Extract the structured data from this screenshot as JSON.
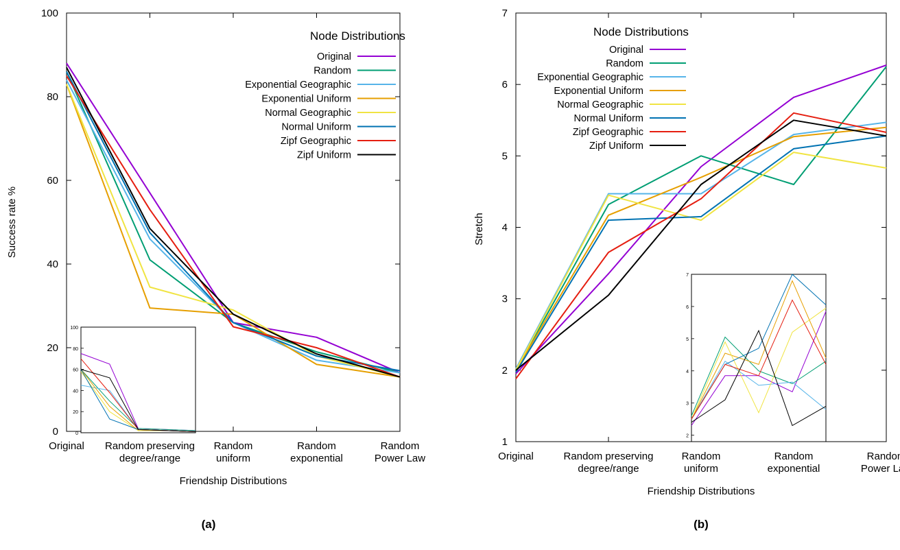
{
  "chart_data": [
    {
      "panel_label": "(a)",
      "type": "line",
      "xlabel": "Friendship Distributions",
      "ylabel": "Success rate %",
      "categories": [
        [
          "Original"
        ],
        [
          "Random preserving",
          "degree/range"
        ],
        [
          "Random",
          "uniform"
        ],
        [
          "Random",
          "exponential"
        ],
        [
          "Random",
          "Power Law"
        ]
      ],
      "ylim": [
        0,
        100
      ],
      "yticks": [
        0,
        20,
        40,
        60,
        80,
        100
      ],
      "legend_title": "Node Distributions",
      "legend_position": "top-right",
      "series": [
        {
          "name": "Original",
          "color": "#9400D3",
          "values": [
            88,
            57,
            26,
            22.5,
            14
          ]
        },
        {
          "name": "Random",
          "color": "#009E73",
          "values": [
            86,
            41,
            26,
            19,
            14
          ]
        },
        {
          "name": "Exponential Geographic",
          "color": "#56B4E9",
          "values": [
            84,
            46,
            26,
            17,
            14
          ]
        },
        {
          "name": "Exponential Uniform",
          "color": "#E69F00",
          "values": [
            83,
            29.5,
            28,
            16,
            13
          ]
        },
        {
          "name": "Normal Geographic",
          "color": "#F0E442",
          "values": [
            83,
            34.5,
            29,
            18,
            13
          ]
        },
        {
          "name": "Normal Uniform",
          "color": "#0072B2",
          "values": [
            86,
            47.5,
            26,
            18,
            14.5
          ]
        },
        {
          "name": "Zipf Geographic",
          "color": "#E51E10",
          "values": [
            85,
            53,
            25,
            20,
            13
          ]
        },
        {
          "name": "Zipf Uniform",
          "color": "#000000",
          "values": [
            87,
            48.5,
            28,
            18.5,
            13
          ]
        }
      ],
      "inset": {
        "ylim": [
          0,
          100
        ],
        "yticks": [
          0,
          20,
          40,
          60,
          80,
          100
        ],
        "series": [
          {
            "color": "#9400D3",
            "values": [
              75,
              65,
              4,
              3,
              2
            ]
          },
          {
            "color": "#009E73",
            "values": [
              60,
              30,
              4,
              3,
              2
            ]
          },
          {
            "color": "#56B4E9",
            "values": [
              45,
              40,
              3,
              2,
              1
            ]
          },
          {
            "color": "#E69F00",
            "values": [
              60,
              25,
              2,
              2,
              1
            ]
          },
          {
            "color": "#F0E442",
            "values": [
              58,
              20,
              2,
              2,
              1
            ]
          },
          {
            "color": "#0072B2",
            "values": [
              60,
              13,
              3,
              2,
              1
            ]
          },
          {
            "color": "#E51E10",
            "values": [
              70,
              38,
              3,
              2,
              1
            ]
          },
          {
            "color": "#000000",
            "values": [
              60,
              52,
              3,
              2,
              1
            ]
          }
        ]
      }
    },
    {
      "panel_label": "(b)",
      "type": "line",
      "xlabel": "Friendship Distributions",
      "ylabel": "Stretch",
      "categories": [
        [
          "Original"
        ],
        [
          "Random preserving",
          "degree/range"
        ],
        [
          "Random",
          "uniform"
        ],
        [
          "Random",
          "exponential"
        ],
        [
          "Random",
          "Power Law"
        ]
      ],
      "ylim": [
        1,
        7
      ],
      "yticks": [
        1,
        2,
        3,
        4,
        5,
        6,
        7
      ],
      "legend_title": "Node Distributions",
      "legend_position": "top-left",
      "series": [
        {
          "name": "Original",
          "color": "#9400D3",
          "values": [
            1.95,
            3.35,
            4.85,
            5.82,
            6.27
          ]
        },
        {
          "name": "Random",
          "color": "#009E73",
          "values": [
            2.0,
            4.32,
            5.0,
            4.6,
            6.25
          ]
        },
        {
          "name": "Exponential Geographic",
          "color": "#56B4E9",
          "values": [
            2.02,
            4.47,
            4.47,
            5.3,
            5.47
          ]
        },
        {
          "name": "Exponential Uniform",
          "color": "#E69F00",
          "values": [
            2.0,
            4.17,
            4.7,
            5.27,
            5.4
          ]
        },
        {
          "name": "Normal Geographic",
          "color": "#F0E442",
          "values": [
            2.0,
            4.45,
            4.1,
            5.05,
            4.83
          ]
        },
        {
          "name": "Normal Uniform",
          "color": "#0072B2",
          "values": [
            1.97,
            4.1,
            4.15,
            5.1,
            5.28
          ]
        },
        {
          "name": "Zipf Geographic",
          "color": "#E51E10",
          "values": [
            1.88,
            3.65,
            4.4,
            5.6,
            5.33
          ]
        },
        {
          "name": "Zipf Uniform",
          "color": "#000000",
          "values": [
            2.0,
            3.05,
            4.6,
            5.5,
            5.28
          ]
        }
      ],
      "inset": {
        "ylim": [
          1.8,
          7
        ],
        "yticks": [
          2,
          3,
          4,
          5,
          6,
          7
        ],
        "series": [
          {
            "color": "#9400D3",
            "values": [
              2.3,
              3.85,
              3.85,
              3.35,
              5.85
            ]
          },
          {
            "color": "#009E73",
            "values": [
              2.6,
              5.05,
              4.0,
              3.6,
              4.3
            ]
          },
          {
            "color": "#56B4E9",
            "values": [
              2.5,
              4.3,
              3.55,
              3.65,
              2.8
            ]
          },
          {
            "color": "#E69F00",
            "values": [
              2.5,
              4.55,
              4.2,
              6.8,
              4.4
            ]
          },
          {
            "color": "#F0E442",
            "values": [
              2.5,
              4.9,
              2.7,
              5.2,
              5.95
            ]
          },
          {
            "color": "#0072B2",
            "values": [
              2.5,
              4.2,
              4.7,
              7.0,
              6.05
            ]
          },
          {
            "color": "#E51E10",
            "values": [
              2.5,
              4.2,
              3.85,
              6.2,
              4.2
            ]
          },
          {
            "color": "#000000",
            "values": [
              2.4,
              3.1,
              5.25,
              2.3,
              2.9
            ]
          }
        ]
      }
    }
  ]
}
